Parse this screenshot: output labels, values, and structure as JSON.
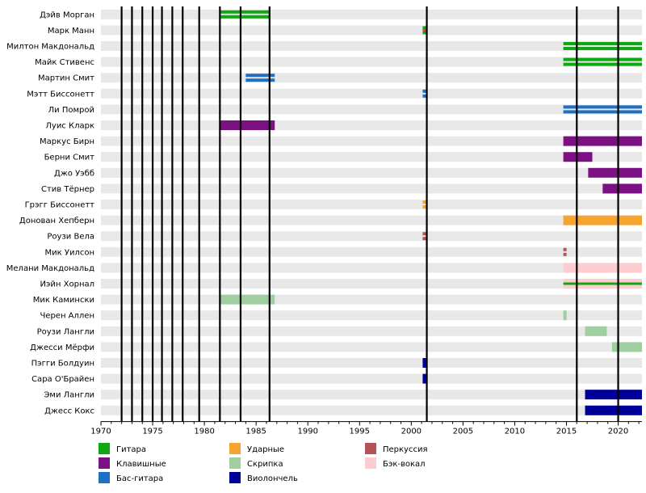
{
  "chart_data": {
    "type": "timeline",
    "title": "",
    "xlabel": "",
    "ylabel": "",
    "xlim": [
      1970,
      2022.3
    ],
    "x_ticks": [
      1970,
      1975,
      1980,
      1985,
      1990,
      1995,
      2000,
      2005,
      2010,
      2015,
      2020
    ],
    "grid": true,
    "roles": [
      {
        "key": "guitar",
        "name": "Гитара",
        "color": "#10a810"
      },
      {
        "key": "keys",
        "name": "Клавишные",
        "color": "#7b1182"
      },
      {
        "key": "bass",
        "name": "Бас-гитара",
        "color": "#1f6fc4"
      },
      {
        "key": "drums",
        "name": "Ударные",
        "color": "#f7a332"
      },
      {
        "key": "violin",
        "name": "Скрипка",
        "color": "#9fcfa0"
      },
      {
        "key": "cello",
        "name": "Виолончель",
        "color": "#000099"
      },
      {
        "key": "perc",
        "name": "Перкуссия",
        "color": "#b5525a"
      },
      {
        "key": "backing",
        "name": "Бэк-вокал",
        "color": "#fcccd0"
      }
    ],
    "members": [
      {
        "name": "Дэйв Морган",
        "periods": [
          {
            "role": "guitar",
            "start": 1981.5,
            "end": 1986.3,
            "style": "double"
          }
        ]
      },
      {
        "name": "Марк Манн",
        "periods": [
          {
            "role": "guitar",
            "start": 2001.1,
            "end": 2001.5,
            "style": "double"
          },
          {
            "role": "perc",
            "start": 2001.1,
            "end": 2001.5,
            "style": "mid"
          }
        ]
      },
      {
        "name": "Милтон Макдональд",
        "periods": [
          {
            "role": "guitar",
            "start": 2014.7,
            "end": 2022.3,
            "style": "double"
          }
        ]
      },
      {
        "name": "Майк Стивенс",
        "periods": [
          {
            "role": "guitar",
            "start": 2014.7,
            "end": 2022.3,
            "style": "double"
          }
        ]
      },
      {
        "name": "Мартин Смит",
        "periods": [
          {
            "role": "bass",
            "start": 1984.0,
            "end": 1986.8,
            "style": "double"
          }
        ]
      },
      {
        "name": "Мэтт Биссонетт",
        "periods": [
          {
            "role": "bass",
            "start": 2001.1,
            "end": 2001.5,
            "style": "double"
          }
        ]
      },
      {
        "name": "Ли Помрой",
        "periods": [
          {
            "role": "bass",
            "start": 2014.7,
            "end": 2022.3,
            "style": "double"
          }
        ]
      },
      {
        "name": "Луис Кларк",
        "periods": [
          {
            "role": "keys",
            "start": 1981.5,
            "end": 1986.8,
            "style": "solid"
          }
        ]
      },
      {
        "name": "Маркус Бирн",
        "periods": [
          {
            "role": "keys",
            "start": 2014.7,
            "end": 2022.3,
            "style": "solid"
          }
        ]
      },
      {
        "name": "Берни Смит",
        "periods": [
          {
            "role": "keys",
            "start": 2014.7,
            "end": 2017.5,
            "style": "solid"
          }
        ]
      },
      {
        "name": "Джо Уэбб",
        "periods": [
          {
            "role": "keys",
            "start": 2017.1,
            "end": 2022.3,
            "style": "solid"
          }
        ]
      },
      {
        "name": "Стив Тёрнер",
        "periods": [
          {
            "role": "keys",
            "start": 2018.5,
            "end": 2022.3,
            "style": "solid"
          }
        ]
      },
      {
        "name": "Грэгг Биссонетт",
        "periods": [
          {
            "role": "drums",
            "start": 2001.1,
            "end": 2001.5,
            "style": "double"
          }
        ]
      },
      {
        "name": "Донован Хепберн",
        "periods": [
          {
            "role": "drums",
            "start": 2014.7,
            "end": 2022.3,
            "style": "solid"
          }
        ]
      },
      {
        "name": "Роузи Вела",
        "periods": [
          {
            "role": "perc",
            "start": 2001.1,
            "end": 2001.5,
            "style": "double"
          }
        ]
      },
      {
        "name": "Мик Уилсон",
        "periods": [
          {
            "role": "perc",
            "start": 2014.7,
            "end": 2014.9,
            "style": "double"
          }
        ]
      },
      {
        "name": "Мелани Макдональд",
        "periods": [
          {
            "role": "backing",
            "start": 2014.7,
            "end": 2022.3,
            "style": "solid"
          }
        ]
      },
      {
        "name": "Иэйн Хорнал",
        "periods": [
          {
            "role": "backing",
            "start": 2014.7,
            "end": 2022.3,
            "style": "solid"
          },
          {
            "role": "guitar",
            "start": 2014.7,
            "end": 2022.3,
            "style": "mid"
          }
        ]
      },
      {
        "name": "Мик Камински",
        "periods": [
          {
            "role": "violin",
            "start": 1981.5,
            "end": 1986.8,
            "style": "solid"
          }
        ]
      },
      {
        "name": "Черен Аллен",
        "periods": [
          {
            "role": "violin",
            "start": 2014.7,
            "end": 2014.9,
            "style": "solid"
          }
        ]
      },
      {
        "name": "Роузи Лангли",
        "periods": [
          {
            "role": "violin",
            "start": 2016.8,
            "end": 2018.9,
            "style": "solid"
          }
        ]
      },
      {
        "name": "Джесси Мёрфи",
        "periods": [
          {
            "role": "violin",
            "start": 2019.4,
            "end": 2022.3,
            "style": "solid"
          }
        ]
      },
      {
        "name": "Пэгги Болдуин",
        "periods": [
          {
            "role": "cello",
            "start": 2001.1,
            "end": 2001.5,
            "style": "solid"
          }
        ]
      },
      {
        "name": "Сара О'Брайен",
        "periods": [
          {
            "role": "cello",
            "start": 2001.1,
            "end": 2001.5,
            "style": "solid"
          }
        ]
      },
      {
        "name": "Эми Лангли",
        "periods": [
          {
            "role": "cello",
            "start": 2016.8,
            "end": 2022.3,
            "style": "solid"
          }
        ]
      },
      {
        "name": "Джесс Кокс",
        "periods": [
          {
            "role": "cello",
            "start": 2016.8,
            "end": 2022.3,
            "style": "solid"
          }
        ]
      }
    ],
    "event_lines": [
      1972.0,
      1973.0,
      1974.0,
      1975.0,
      1975.9,
      1976.9,
      1977.9,
      1979.5,
      1981.5,
      1983.5,
      1986.3,
      2001.5,
      2016.0,
      2020.0
    ]
  }
}
